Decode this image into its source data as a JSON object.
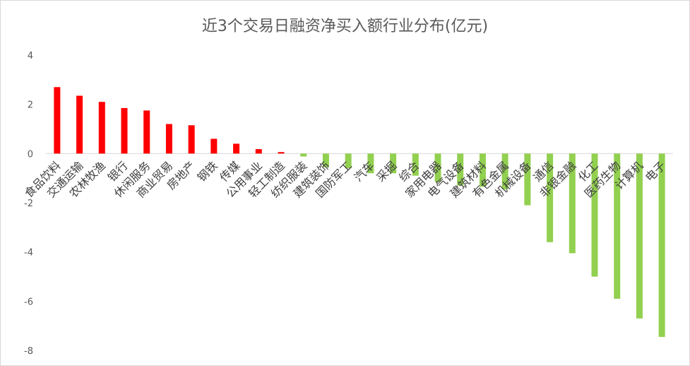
{
  "chart_data": {
    "type": "bar",
    "title": "近3个交易日融资净买入额行业分布(亿元)",
    "xlabel": "",
    "ylabel": "",
    "ylim": [
      -8,
      4
    ],
    "yticks": [
      4,
      2,
      0,
      -2,
      -4,
      -6,
      -8
    ],
    "grid": false,
    "legend": "none",
    "colors": {
      "positive": "#ff0000",
      "negative": "#92d050",
      "tick_text": "#595959",
      "axis": "#d9d9d9"
    },
    "categories": [
      "食品饮料",
      "交通运输",
      "农林牧渔",
      "银行",
      "休闲服务",
      "商业贸易",
      "房地产",
      "钢铁",
      "传媒",
      "公用事业",
      "轻工制造",
      "纺织服装",
      "建筑装饰",
      "国防军工",
      "汽车",
      "采掘",
      "综合",
      "家用电器",
      "电气设备",
      "建筑材料",
      "有色金属",
      "机械设备",
      "通信",
      "非银金融",
      "化工",
      "医药生物",
      "计算机",
      "电子"
    ],
    "values": [
      2.7,
      2.35,
      2.1,
      1.85,
      1.75,
      1.2,
      1.15,
      0.6,
      0.4,
      0.18,
      0.06,
      -0.12,
      -0.55,
      -0.6,
      -0.8,
      -0.8,
      -0.9,
      -1.15,
      -1.3,
      -1.35,
      -1.45,
      -2.1,
      -3.6,
      -4.05,
      -5.0,
      -5.9,
      -6.7,
      -7.45
    ]
  }
}
